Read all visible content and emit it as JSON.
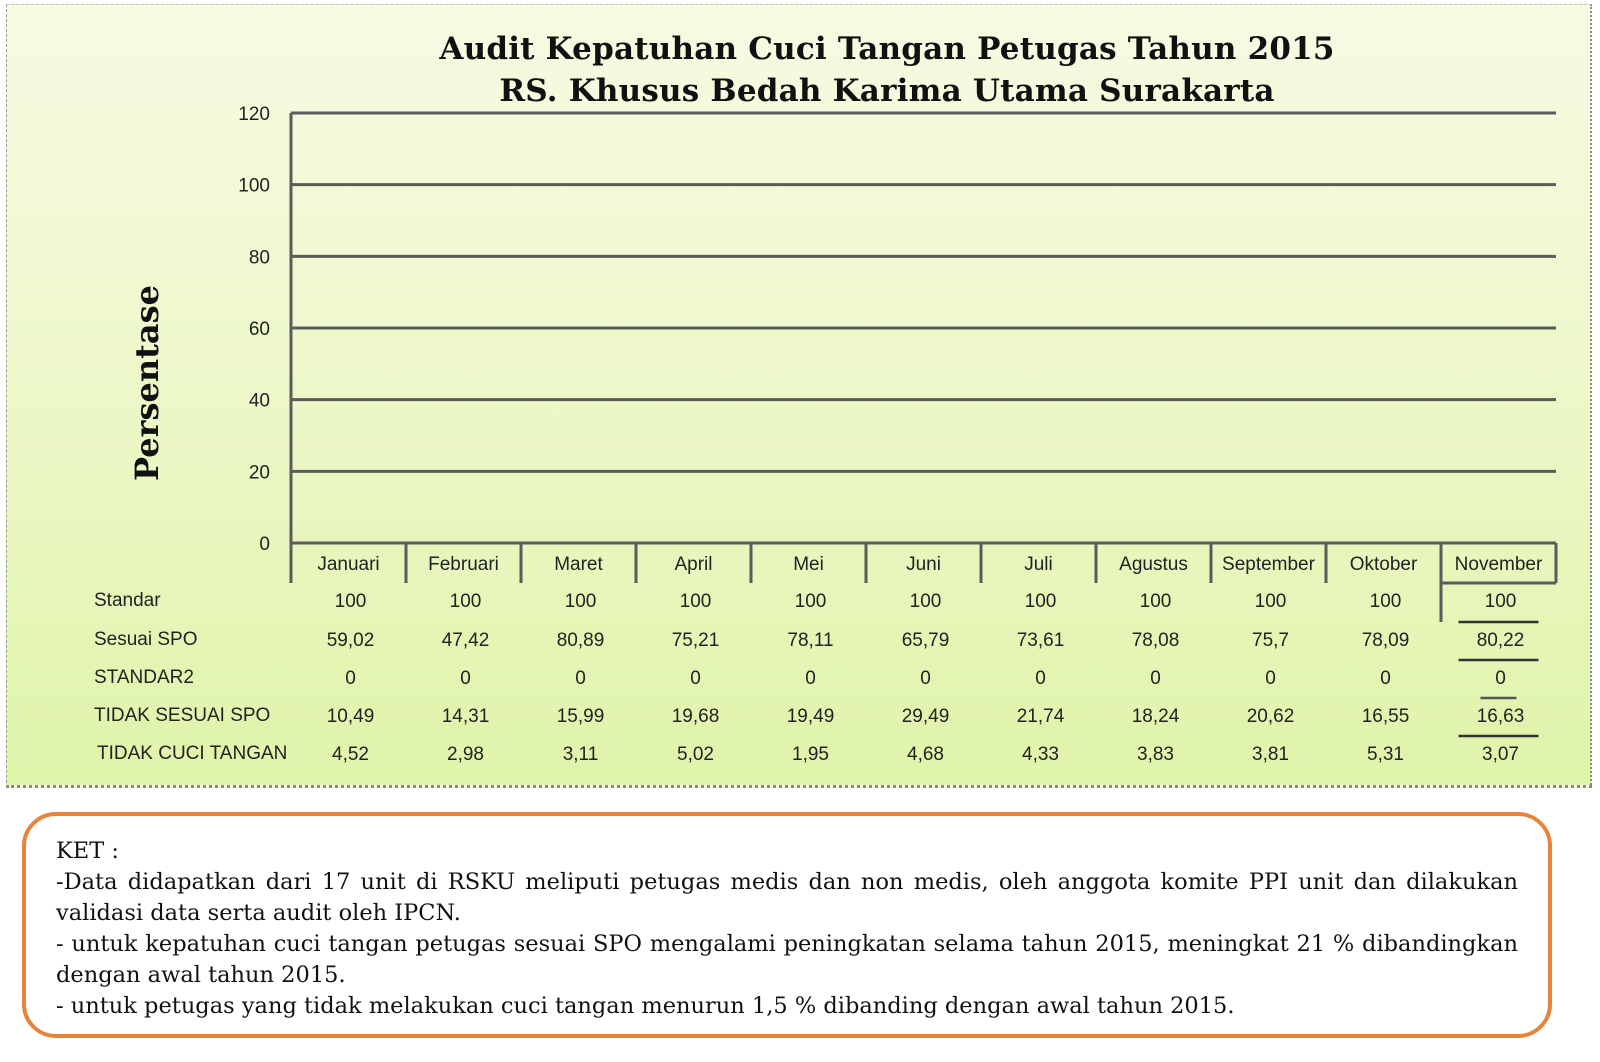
{
  "chart_data": {
    "type": "table",
    "title": "Audit Kepatuhan Cuci Tangan Petugas Tahun 2015",
    "subtitle": "RS. Khusus Bedah Karima Utama Surakarta",
    "ylabel": "Persentase",
    "xlabel": "",
    "ylim": [
      0,
      120
    ],
    "yticks": [
      0,
      20,
      40,
      60,
      80,
      100,
      120
    ],
    "grid": true,
    "categories": [
      "Januari",
      "Februari",
      "Maret",
      "April",
      "Mei",
      "Juni",
      "Juli",
      "Agustus",
      "September",
      "Oktober",
      "November"
    ],
    "series": [
      {
        "name": "Standar",
        "values": [
          100,
          100,
          100,
          100,
          100,
          100,
          100,
          100,
          100,
          100,
          100
        ],
        "labels": [
          "100",
          "100",
          "100",
          "100",
          "100",
          "100",
          "100",
          "100",
          "100",
          "100",
          "100"
        ]
      },
      {
        "name": "Sesuai SPO",
        "values": [
          59.02,
          47.42,
          80.89,
          75.21,
          78.11,
          65.79,
          73.61,
          78.08,
          75.7,
          78.09,
          80.22
        ],
        "labels": [
          "59,02",
          "47,42",
          "80,89",
          "75,21",
          "78,11",
          "65,79",
          "73,61",
          "78,08",
          "75,7",
          "78,09",
          "80,22"
        ]
      },
      {
        "name": "STANDAR2",
        "values": [
          0,
          0,
          0,
          0,
          0,
          0,
          0,
          0,
          0,
          0,
          0
        ],
        "labels": [
          "0",
          "0",
          "0",
          "0",
          "0",
          "0",
          "0",
          "0",
          "0",
          "0",
          "0"
        ]
      },
      {
        "name": "TIDAK SESUAI SPO",
        "values": [
          10.49,
          14.31,
          15.99,
          19.68,
          19.49,
          29.49,
          21.74,
          18.24,
          20.62,
          16.55,
          16.63
        ],
        "labels": [
          "10,49",
          "14,31",
          "15,99",
          "19,68",
          "19,49",
          "29,49",
          "21,74",
          "18,24",
          "20,62",
          "16,55",
          "16,63"
        ]
      },
      {
        "name": "TIDAK CUCI TANGAN",
        "values": [
          4.52,
          2.98,
          3.11,
          5.02,
          1.95,
          4.68,
          4.33,
          3.83,
          3.81,
          5.31,
          3.07
        ],
        "labels": [
          "4,52",
          "2,98",
          "3,11",
          "5,02",
          "1,95",
          "4,68",
          "4,33",
          "3,83",
          "3,81",
          "5,31",
          "3,07"
        ]
      }
    ]
  },
  "notes": {
    "heading": "KET :",
    "items": [
      "-Data didapatkan dari 17 unit di RSKU meliputi petugas medis dan non medis,  oleh anggota komite PPI unit dan dilakukan validasi data serta audit oleh IPCN.",
      "- untuk kepatuhan cuci tangan petugas sesuai SPO mengalami peningkatan selama tahun 2015,  meningkat 21 % dibandingkan dengan awal tahun 2015.",
      "-  untuk petugas yang tidak melakukan cuci tangan menurun 1,5 % dibanding dengan awal tahun 2015."
    ]
  },
  "colors": {
    "gridline": "#5b5b5b",
    "note_border": "#e8833a"
  }
}
